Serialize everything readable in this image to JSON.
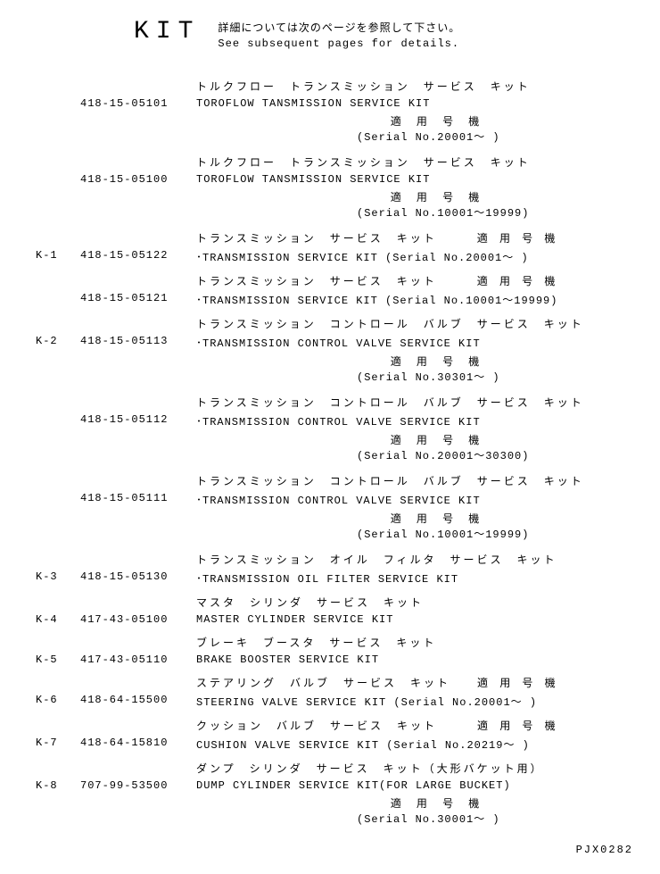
{
  "header": {
    "kit": "KIT",
    "jp": "詳細については次のページを参照して下さい。",
    "en": "See subsequent pages for details."
  },
  "entries": [
    {
      "ref": "",
      "part": "418-15-05101",
      "jp": "トルクフロー　トランスミッション　サービス　キット",
      "en": "TOROFLOW TANSMISSION SERVICE KIT",
      "serial_label": "適 用 号 機",
      "serial": "(Serial No.20001～ )"
    },
    {
      "ref": "",
      "part": "418-15-05100",
      "jp": "トルクフロー　トランスミッション　サービス　キット",
      "en": "TOROFLOW TANSMISSION SERVICE KIT",
      "serial_label": "適 用 号 機",
      "serial": "(Serial No.10001～19999)"
    },
    {
      "ref": "K-1",
      "part": "418-15-05122",
      "jp": "トランスミッション　サービス　キット　　　適 用 号 機",
      "en": "･TRANSMISSION SERVICE KIT  (Serial No.20001～ )"
    },
    {
      "ref": "",
      "part": "418-15-05121",
      "jp": "トランスミッション　サービス　キット　　　適 用 号 機",
      "en": "･TRANSMISSION SERVICE KIT  (Serial No.10001～19999)"
    },
    {
      "ref": "K-2",
      "part": "418-15-05113",
      "jp": "トランスミッション　コントロール　バルブ　サービス　キット",
      "en": "･TRANSMISSION CONTROL VALVE SERVICE KIT",
      "serial_label": "適 用 号 機",
      "serial": "(Serial No.30301～ )"
    },
    {
      "ref": "",
      "part": "418-15-05112",
      "jp": "トランスミッション　コントロール　バルブ　サービス　キット",
      "en": "･TRANSMISSION CONTROL VALVE SERVICE KIT",
      "serial_label": "適 用 号 機",
      "serial": "(Serial No.20001～30300)"
    },
    {
      "ref": "",
      "part": "418-15-05111",
      "jp": "トランスミッション　コントロール　バルブ　サービス　キット",
      "en": "･TRANSMISSION CONTROL VALVE SERVICE KIT",
      "serial_label": "適 用 号 機",
      "serial": "(Serial No.10001～19999)"
    },
    {
      "ref": "K-3",
      "part": "418-15-05130",
      "jp": "トランスミッション　オイル　フィルタ　サービス　キット",
      "en": "･TRANSMISSION OIL FILTER SERVICE KIT"
    },
    {
      "ref": "K-4",
      "part": "417-43-05100",
      "jp": "マスタ　シリンダ　サービス　キット",
      "en": "MASTER CYLINDER SERVICE KIT"
    },
    {
      "ref": "K-5",
      "part": "417-43-05110",
      "jp": "ブレーキ　ブースタ　サービス　キット",
      "en": "BRAKE BOOSTER SERVICE KIT"
    },
    {
      "ref": "K-6",
      "part": "418-64-15500",
      "jp": "ステアリング　バルブ　サービス　キット　　適 用 号 機",
      "en": "STEERING VALVE SERVICE KIT (Serial No.20001～ )"
    },
    {
      "ref": "K-7",
      "part": "418-64-15810",
      "jp": "クッション　バルブ　サービス　キット　　　適 用 号 機",
      "en": "CUSHION VALVE SERVICE KIT  (Serial No.20219～ )"
    },
    {
      "ref": "K-8",
      "part": "707-99-53500",
      "jp": "ダンプ　シリンダ　サービス　キット（大形バケット用）",
      "en": "DUMP CYLINDER SERVICE KIT(FOR LARGE BUCKET)",
      "serial_label": "適 用 号 機",
      "serial": "(Serial No.30001～ )"
    }
  ],
  "footer": "PJX0282"
}
